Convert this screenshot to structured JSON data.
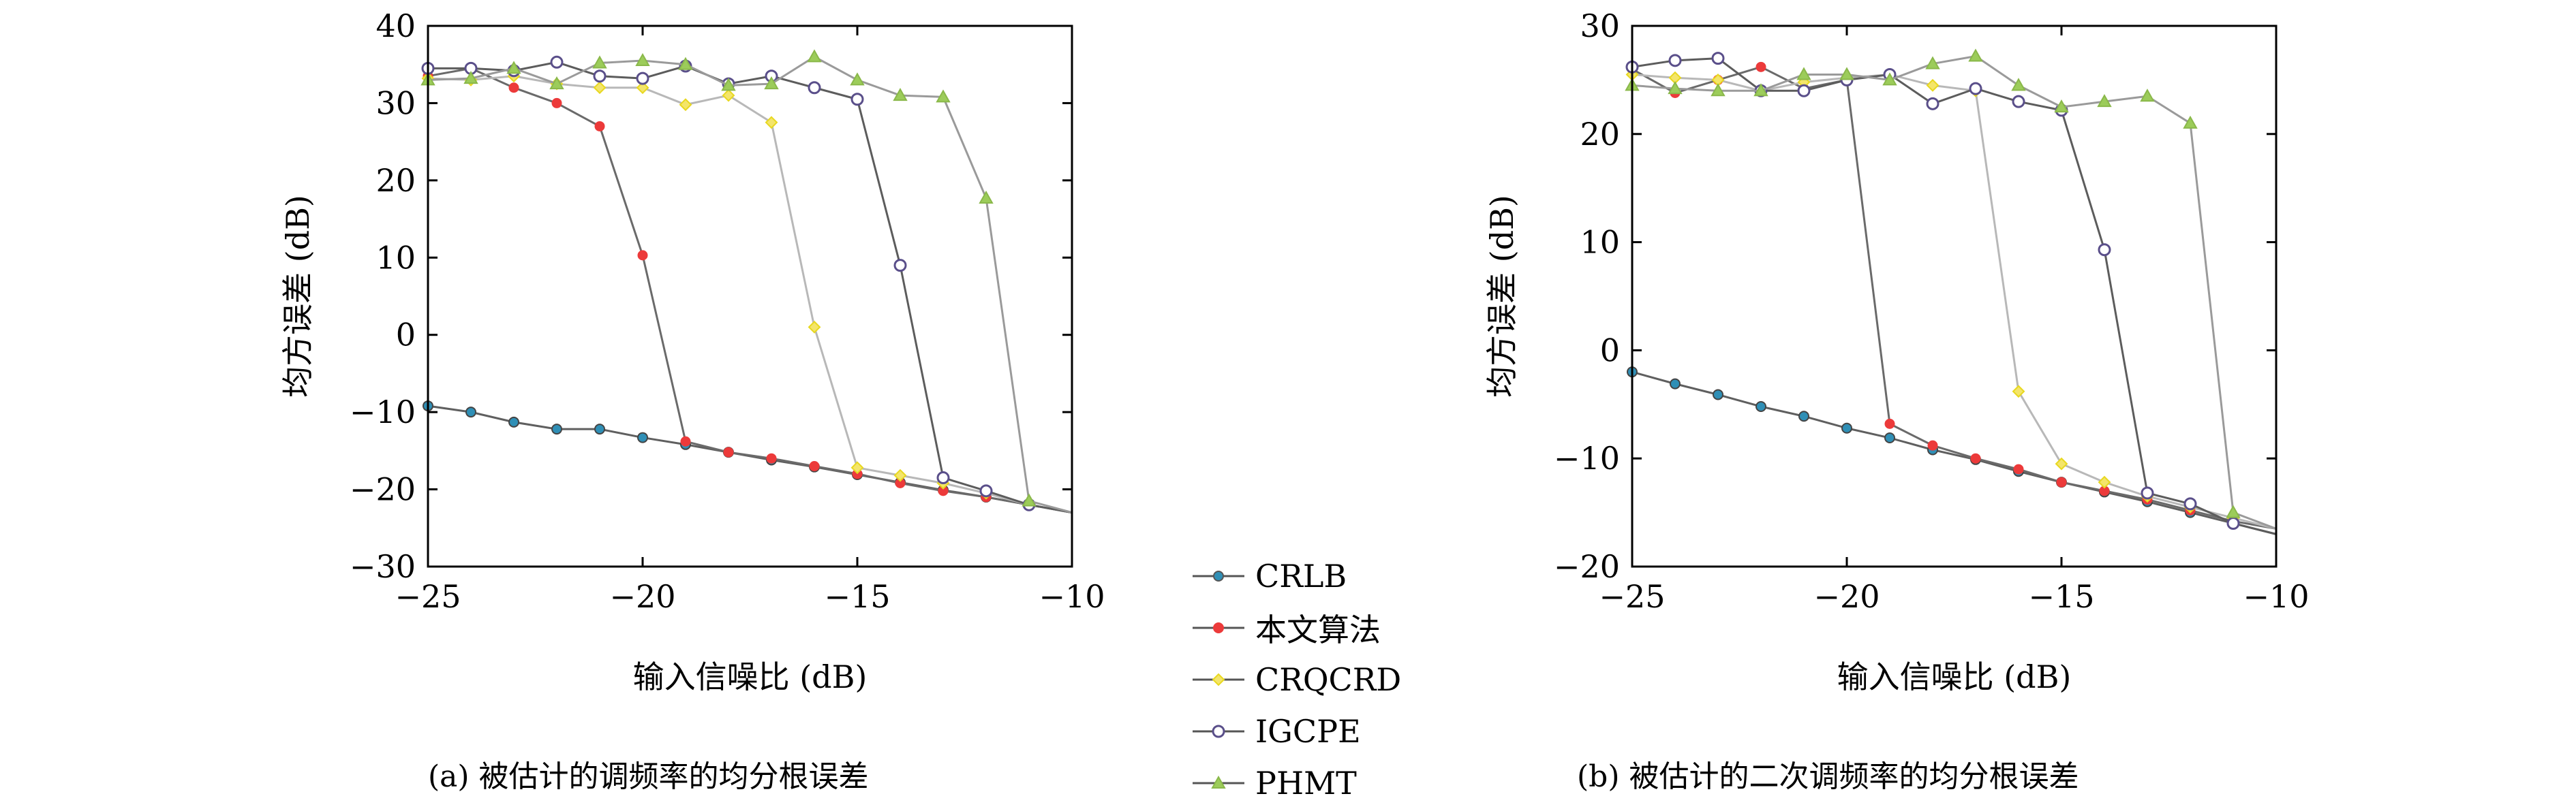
{
  "chart_data": [
    {
      "type": "line",
      "caption": "(a) 被估计的调频率的均分根误差",
      "xlabel": "输入信噪比 (dB)",
      "ylabel": "均方误差 (dB)",
      "xlim": [
        -25,
        -10
      ],
      "ylim": [
        -30,
        40
      ],
      "xticks": [
        -25,
        -20,
        -15,
        -10
      ],
      "yticks": [
        -30,
        -20,
        -10,
        0,
        10,
        20,
        30,
        40
      ],
      "x": [
        -25,
        -24,
        -23,
        -22,
        -21,
        -20,
        -19,
        -18,
        -17,
        -16,
        -15,
        -14,
        -13,
        -12,
        -11,
        -10
      ],
      "series": [
        {
          "name": "CRLB",
          "values": [
            -9.2,
            -10,
            -11.3,
            -12.2,
            -12.2,
            -13.3,
            -14.2,
            -15.2,
            -16.2,
            -17.1,
            -18.1,
            -19.1,
            -20.1,
            -21.0,
            -22.0,
            -23.0
          ]
        },
        {
          "name": "本文算法",
          "values": [
            33.5,
            34.5,
            32,
            30,
            27,
            10.3,
            -13.8,
            -15.2,
            -16.0,
            -17.0,
            -18.0,
            -19.2,
            -20.2,
            -21.0,
            -22.0,
            -23.0
          ]
        },
        {
          "name": "CRQCRD",
          "values": [
            33.2,
            33.0,
            33.5,
            32.5,
            32.0,
            32.0,
            29.8,
            31.0,
            27.5,
            1.0,
            -17.2,
            -18.2,
            -19.2,
            -20.5,
            -22.0,
            -23.0
          ]
        },
        {
          "name": "IGCPE",
          "values": [
            34.5,
            34.5,
            34.2,
            35.3,
            33.5,
            33.2,
            34.8,
            32.5,
            33.5,
            32.0,
            30.5,
            9.0,
            -18.5,
            -20.2,
            -22.0,
            -23.0
          ]
        },
        {
          "name": "PHMT",
          "values": [
            33,
            33.2,
            34.5,
            32.5,
            35.2,
            35.5,
            35.0,
            32.3,
            32.5,
            36.0,
            33.0,
            31.0,
            30.8,
            17.7,
            -21.5,
            -23.0
          ]
        }
      ]
    },
    {
      "type": "line",
      "caption": "(b) 被估计的二次调频率的均分根误差",
      "xlabel": "输入信噪比 (dB)",
      "ylabel": "均方误差 (dB)",
      "xlim": [
        -25,
        -10
      ],
      "ylim": [
        -20,
        30
      ],
      "xticks": [
        -25,
        -20,
        -15,
        -10
      ],
      "yticks": [
        -20,
        -10,
        0,
        10,
        20,
        30
      ],
      "x": [
        -25,
        -24,
        -23,
        -22,
        -21,
        -20,
        -19,
        -18,
        -17,
        -16,
        -15,
        -14,
        -13,
        -12,
        -11,
        -10
      ],
      "series": [
        {
          "name": "CRLB",
          "values": [
            -2.0,
            -3.1,
            -4.1,
            -5.2,
            -6.1,
            -7.2,
            -8.1,
            -9.2,
            -10.1,
            -11.2,
            -12.2,
            -13.1,
            -14.0,
            -15.0,
            -16.0,
            -17.0
          ]
        },
        {
          "name": "本文算法",
          "values": [
            26.0,
            23.8,
            25.0,
            26.2,
            24.2,
            25.0,
            -6.8,
            -8.8,
            -10.0,
            -11.0,
            -12.2,
            -13.0,
            -13.8,
            -14.8,
            -15.8,
            -16.5
          ]
        },
        {
          "name": "CRQCRD",
          "values": [
            25.5,
            25.2,
            25.0,
            24.0,
            24.8,
            25.2,
            25.5,
            24.5,
            24.0,
            -3.8,
            -10.5,
            -12.2,
            -13.5,
            -14.5,
            -15.5,
            -16.5
          ]
        },
        {
          "name": "IGCPE",
          "values": [
            26.2,
            26.8,
            27.0,
            24.0,
            24.0,
            25.0,
            25.5,
            22.8,
            24.2,
            23.0,
            22.2,
            9.3,
            -13.2,
            -14.2,
            -16.0,
            -17.0
          ]
        },
        {
          "name": "PHMT",
          "values": [
            24.5,
            24.2,
            24.0,
            24.0,
            25.5,
            25.5,
            25.0,
            26.5,
            27.2,
            24.5,
            22.5,
            23.0,
            23.5,
            21.0,
            -15.0,
            -16.5
          ]
        }
      ]
    }
  ],
  "legend": {
    "items": [
      {
        "name": "CRLB",
        "color": "#2f8fb6"
      },
      {
        "name": "本文算法",
        "color": "#ec3a3a"
      },
      {
        "name": "CRQCRD",
        "color": "#e8d820"
      },
      {
        "name": "IGCPE",
        "color": "#5a4f8a"
      },
      {
        "name": "PHMT",
        "color": "#9ccc5a"
      }
    ]
  },
  "colors": {
    "CRLB": "#2f8fb6",
    "本文算法": "#ec3a3a",
    "CRQCRD": "#e8d820",
    "IGCPE": "#5a4f8a",
    "PHMT": "#9ccc5a",
    "line_grey": "#6f6f6f",
    "axis": "#000000"
  }
}
